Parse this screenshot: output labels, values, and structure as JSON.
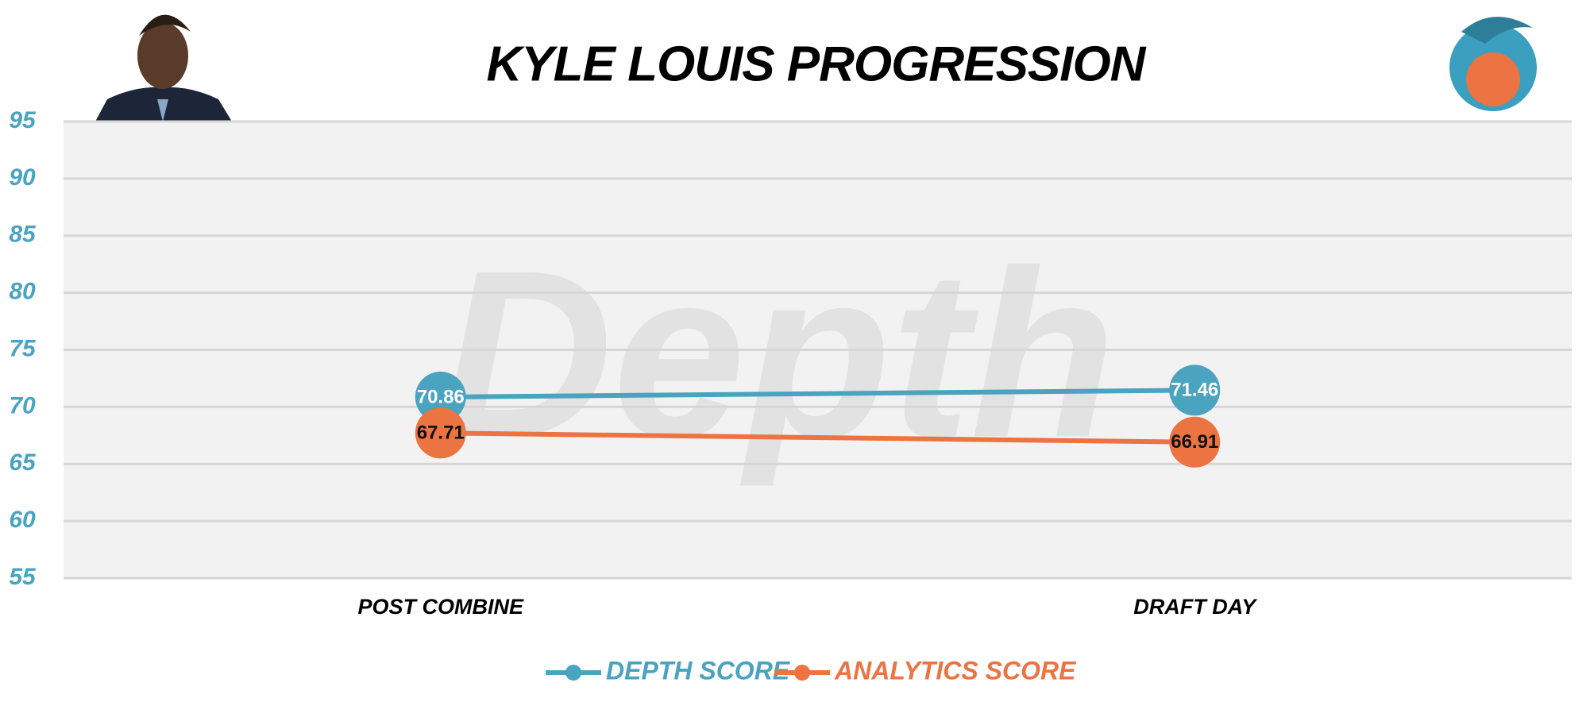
{
  "chart_data": {
    "type": "line",
    "title": "KYLE LOUIS PROGRESSION",
    "watermark": "Depth",
    "categories": [
      "POST COMBINE",
      "DRAFT DAY"
    ],
    "series": [
      {
        "name": "DEPTH SCORE",
        "color": "#4aa3bf",
        "label_color": "#ffffff",
        "values": [
          70.86,
          71.46
        ]
      },
      {
        "name": "ANALYTICS SCORE",
        "color": "#ec7342",
        "label_color": "#111111",
        "values": [
          67.71,
          66.91
        ]
      }
    ],
    "ylim": [
      55,
      95
    ],
    "yticks": [
      55,
      60,
      65,
      70,
      75,
      80,
      85,
      90,
      95
    ],
    "grid": true,
    "legend": "bottom"
  }
}
